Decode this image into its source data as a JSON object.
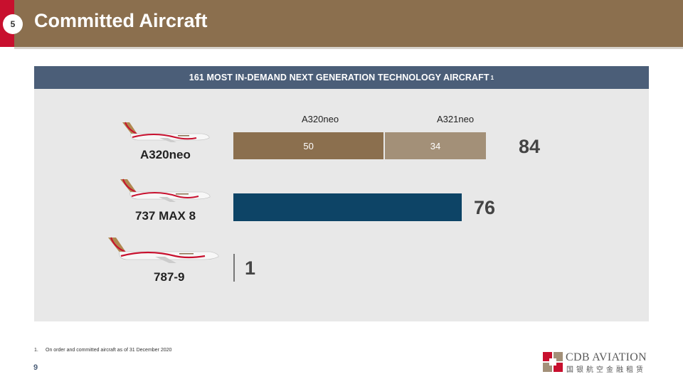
{
  "page_number_badge": "5",
  "title": "Committed Aircraft",
  "panel_header": "161 MOST IN-DEMAND NEXT GENERATION TECHNOLOGY AIRCRAFT",
  "panel_header_sup": "1",
  "footnote_number": "1.",
  "footnote": "On order and committed aircraft as of 31 December 2020",
  "page_number": "9",
  "logo": {
    "name": "CDB AVIATION",
    "chinese": "国银航空金融租赁"
  },
  "colors": {
    "brown": "#8b6f4e",
    "light_brown": "#a39078",
    "navy": "#0d4466",
    "header": "#4b5e78",
    "red": "#c8102e"
  },
  "chart_data": {
    "type": "bar",
    "orientation": "horizontal",
    "stacked": true,
    "categories": [
      "A320neo",
      "737 MAX 8",
      "787-9"
    ],
    "column_headers": [
      "A320neo",
      "A321neo"
    ],
    "segments": [
      {
        "category": "A320neo",
        "label": "50",
        "value": 50,
        "color": "#8b6f4e"
      },
      {
        "category": "A320neo",
        "label": "34",
        "value": 34,
        "color": "#a39078"
      },
      {
        "category": "737 MAX 8",
        "label": "",
        "value": 76,
        "color": "#0d4466"
      },
      {
        "category": "787-9",
        "label": "",
        "value": 1,
        "color": "#777777"
      }
    ],
    "totals": [
      "84",
      "76",
      "1"
    ]
  }
}
